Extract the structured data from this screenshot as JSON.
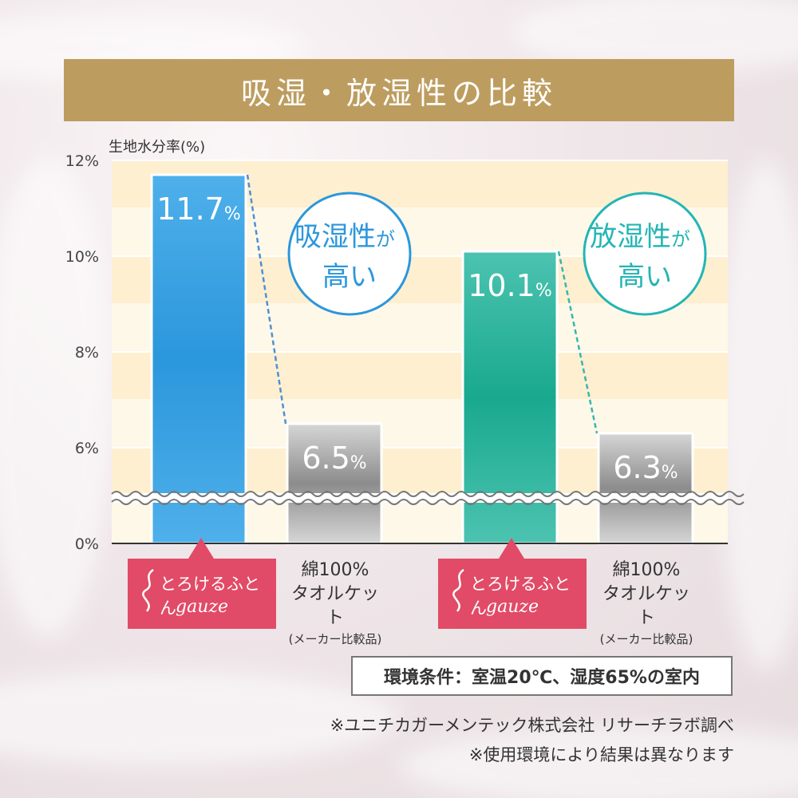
{
  "title": "吸湿・放湿性の比較",
  "chart_data": {
    "type": "bar",
    "ylabel": "生地水分率(%)",
    "y_ticks": [
      "0%",
      "6%",
      "8%",
      "10%",
      "12%"
    ],
    "axis_break": true,
    "categories": [
      "とろけるふとんgauze",
      "綿100%タオルケット(メーカー比較品)",
      "とろけるふとんgauze",
      "綿100%タオルケット(メーカー比較品)"
    ],
    "groups": [
      {
        "callout": [
          "吸湿性が",
          "高い"
        ],
        "bars": [
          {
            "value": 11.7,
            "label": "11.7%",
            "color": "#2b97dc"
          },
          {
            "value": 6.5,
            "label": "6.5%",
            "color": "#8c8c8c"
          }
        ]
      },
      {
        "callout": [
          "放湿性が",
          "高い"
        ],
        "bars": [
          {
            "value": 10.1,
            "label": "10.1%",
            "color": "#19a98f"
          },
          {
            "value": 6.3,
            "label": "6.3%",
            "color": "#8c8c8c"
          }
        ]
      }
    ]
  },
  "category_labels": {
    "brand_line1": "とろけるふとん",
    "brand_line2": "gauze",
    "other_line1": "綿100%",
    "other_line2": "タオルケット",
    "other_line3": "(メーカー比較品)"
  },
  "condition": "環境条件：室温20℃、湿度65%の室内",
  "notes": [
    "※ユニチカガーメンテック株式会社 リサーチラボ調べ",
    "※使用環境により結果は異なります"
  ],
  "colors": {
    "accent_gold": "#bd9d5f",
    "brand_pink": "#e14b67",
    "blue": "#2b97dc",
    "teal": "#19a98f",
    "gray": "#8c8c8c"
  }
}
